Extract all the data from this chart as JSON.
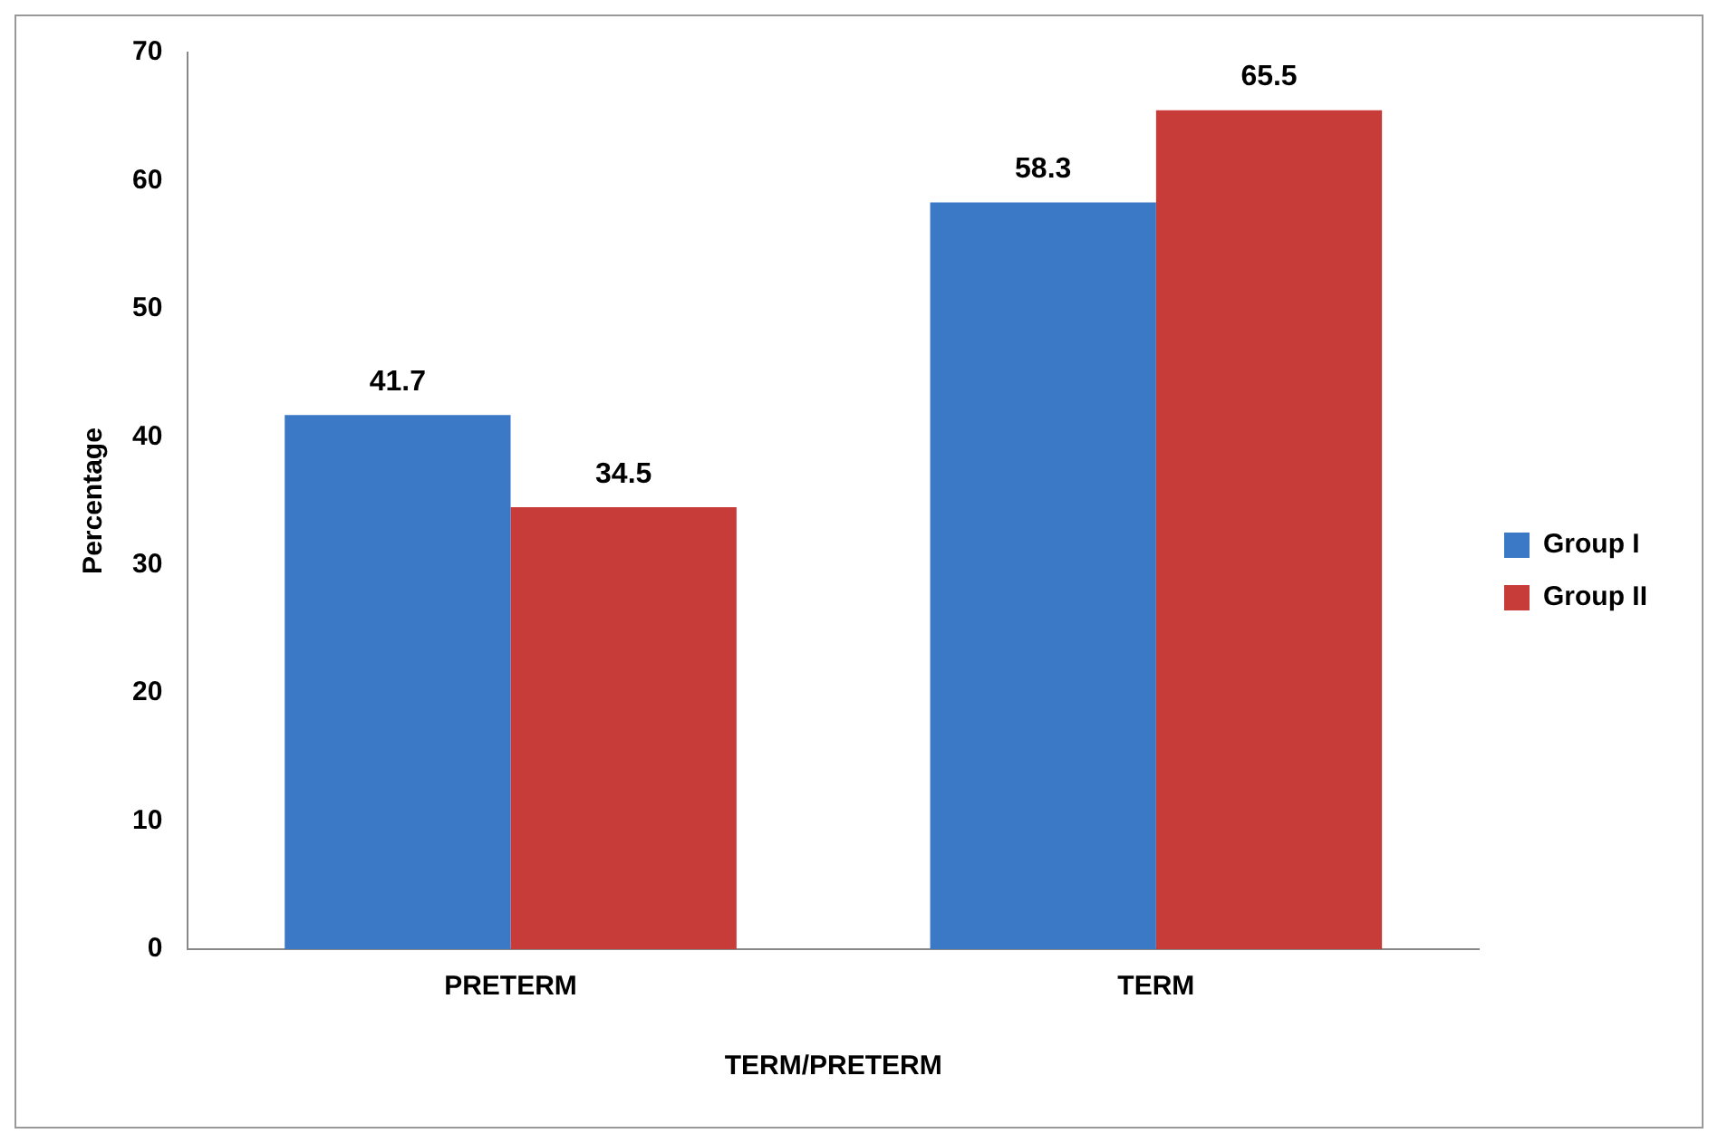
{
  "chart_data": {
    "type": "bar",
    "xlabel": "TERM/PRETERM",
    "ylabel": "Percentage",
    "categories": [
      "PRETERM",
      "TERM"
    ],
    "series": [
      {
        "name": "Group I",
        "color": "#3b78c6",
        "values": [
          41.7,
          58.3
        ]
      },
      {
        "name": "Group II",
        "color": "#c73b39",
        "values": [
          34.5,
          65.5
        ]
      }
    ],
    "ylim": [
      0,
      70
    ],
    "yticks": [
      0,
      10,
      20,
      30,
      40,
      50,
      60,
      70
    ],
    "grid": false,
    "legend": "right",
    "data_labels": true
  }
}
